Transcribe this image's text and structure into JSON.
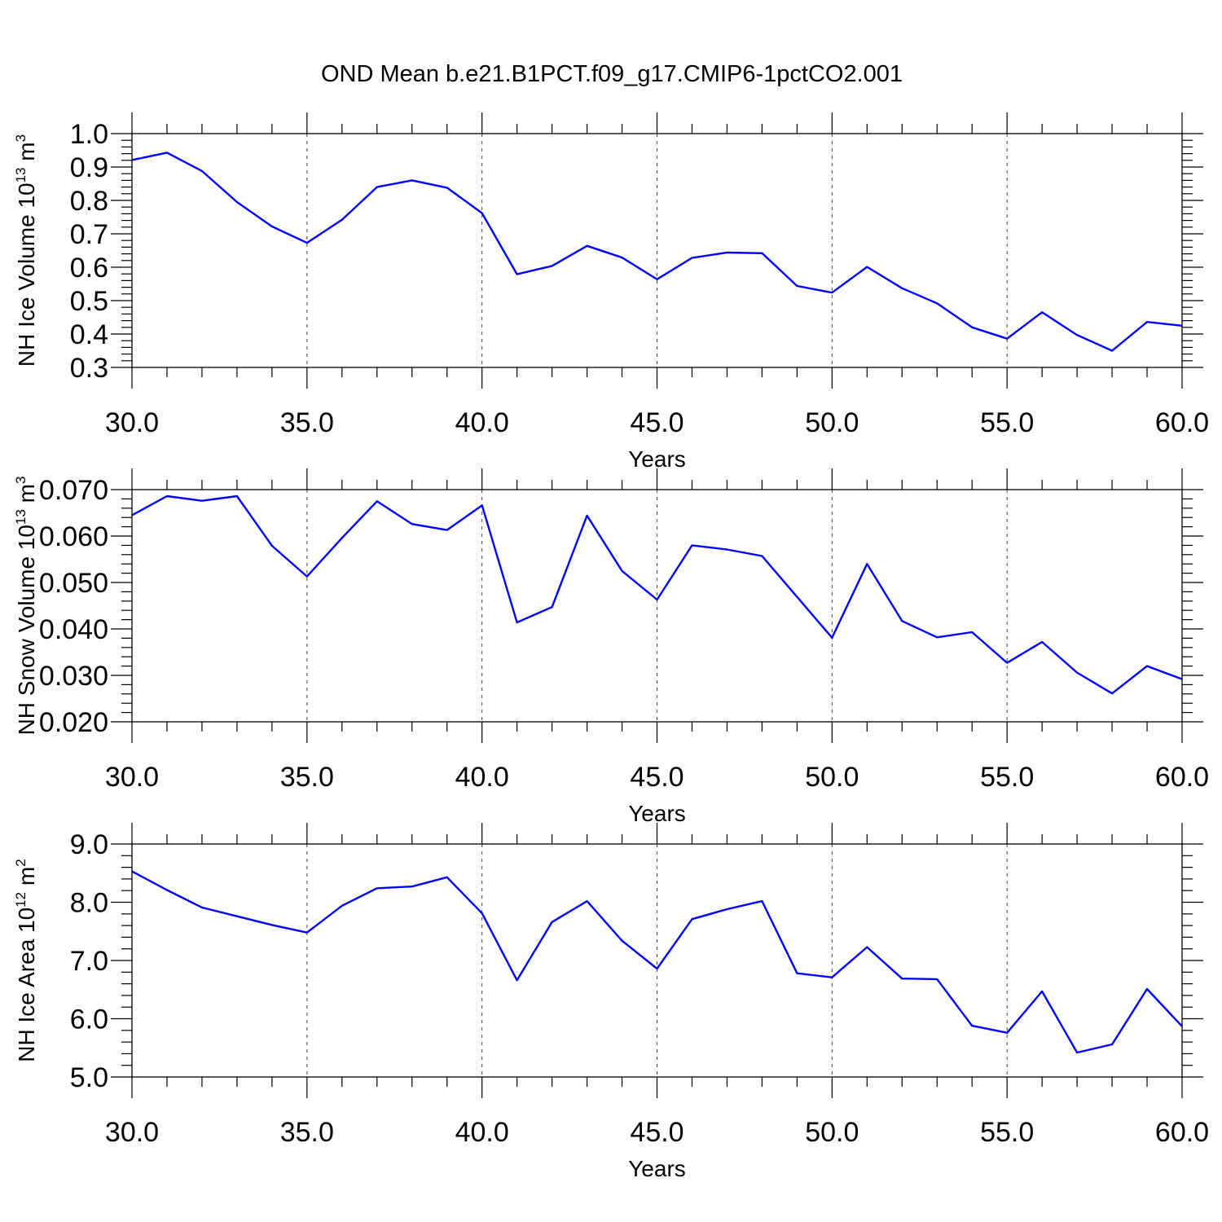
{
  "figure": {
    "title": "OND Mean b.e21.B1PCT.f09_g17.CMIP6-1pctCO2.001",
    "line_color": "#0000ff",
    "xlabel": "Years",
    "xticks": [
      "30.0",
      "35.0",
      "40.0",
      "45.0",
      "50.0",
      "55.0",
      "60.0"
    ]
  },
  "chart_data": [
    {
      "type": "line",
      "title": "OND Mean b.e21.B1PCT.f09_g17.CMIP6-1pctCO2.001",
      "xlabel": "Years",
      "ylabel": "NH Ice Volume 10",
      "ylabel_exp": "13",
      "ylabel_unit": " m",
      "ylabel_unit_exp": "3",
      "xlim": [
        30,
        60
      ],
      "ylim": [
        0.3,
        1.0
      ],
      "yticks": [
        "0.3",
        "0.4",
        "0.5",
        "0.6",
        "0.7",
        "0.8",
        "0.9",
        "1.0"
      ],
      "grid": "vertical dashed at major x ticks",
      "x": [
        30,
        31,
        32,
        33,
        34,
        35,
        36,
        37,
        38,
        39,
        40,
        41,
        42,
        43,
        44,
        45,
        46,
        47,
        48,
        49,
        50,
        51,
        52,
        53,
        54,
        55,
        56,
        57,
        58,
        59,
        60
      ],
      "values": [
        0.921,
        0.943,
        0.888,
        0.795,
        0.722,
        0.673,
        0.742,
        0.84,
        0.86,
        0.838,
        0.762,
        0.579,
        0.604,
        0.664,
        0.629,
        0.564,
        0.628,
        0.644,
        0.642,
        0.544,
        0.524,
        0.601,
        0.537,
        0.492,
        0.42,
        0.386,
        0.465,
        0.397,
        0.35,
        0.436,
        0.425
      ]
    },
    {
      "type": "line",
      "xlabel": "Years",
      "ylabel": "NH Snow Volume 10",
      "ylabel_exp": "13",
      "ylabel_unit": " m",
      "ylabel_unit_exp": "3",
      "xlim": [
        30,
        60
      ],
      "ylim": [
        0.02,
        0.07
      ],
      "yticks": [
        "0.020",
        "0.030",
        "0.040",
        "0.050",
        "0.060",
        "0.070"
      ],
      "grid": "vertical dashed at major x ticks",
      "x": [
        30,
        31,
        32,
        33,
        34,
        35,
        36,
        37,
        38,
        39,
        40,
        41,
        42,
        43,
        44,
        45,
        46,
        47,
        48,
        49,
        50,
        51,
        52,
        53,
        54,
        55,
        56,
        57,
        58,
        59,
        60
      ],
      "values": [
        0.0645,
        0.0686,
        0.0676,
        0.0686,
        0.0579,
        0.0513,
        0.0596,
        0.0675,
        0.0626,
        0.0613,
        0.0666,
        0.0414,
        0.0447,
        0.0644,
        0.0525,
        0.0463,
        0.058,
        0.0571,
        0.0557,
        0.0469,
        0.0381,
        0.054,
        0.0417,
        0.0382,
        0.0393,
        0.0327,
        0.0372,
        0.0306,
        0.0261,
        0.032,
        0.0292
      ]
    },
    {
      "type": "line",
      "xlabel": "Years",
      "ylabel": "NH Ice Area 10",
      "ylabel_exp": "12",
      "ylabel_unit": " m",
      "ylabel_unit_exp": "2",
      "xlim": [
        30,
        60
      ],
      "ylim": [
        5.0,
        9.0
      ],
      "yticks": [
        "5.0",
        "6.0",
        "7.0",
        "8.0",
        "9.0"
      ],
      "grid": "vertical dashed at major x ticks",
      "x": [
        30,
        31,
        32,
        33,
        34,
        35,
        36,
        37,
        38,
        39,
        40,
        41,
        42,
        43,
        44,
        45,
        46,
        47,
        48,
        49,
        50,
        51,
        52,
        53,
        54,
        55,
        56,
        57,
        58,
        59,
        60
      ],
      "values": [
        8.53,
        8.21,
        7.91,
        7.76,
        7.61,
        7.48,
        7.94,
        8.24,
        8.27,
        8.43,
        7.81,
        6.66,
        7.66,
        8.02,
        7.34,
        6.86,
        7.71,
        7.88,
        8.02,
        6.78,
        6.71,
        7.23,
        6.69,
        6.68,
        5.88,
        5.76,
        6.47,
        5.42,
        5.56,
        6.51,
        5.87
      ]
    }
  ]
}
